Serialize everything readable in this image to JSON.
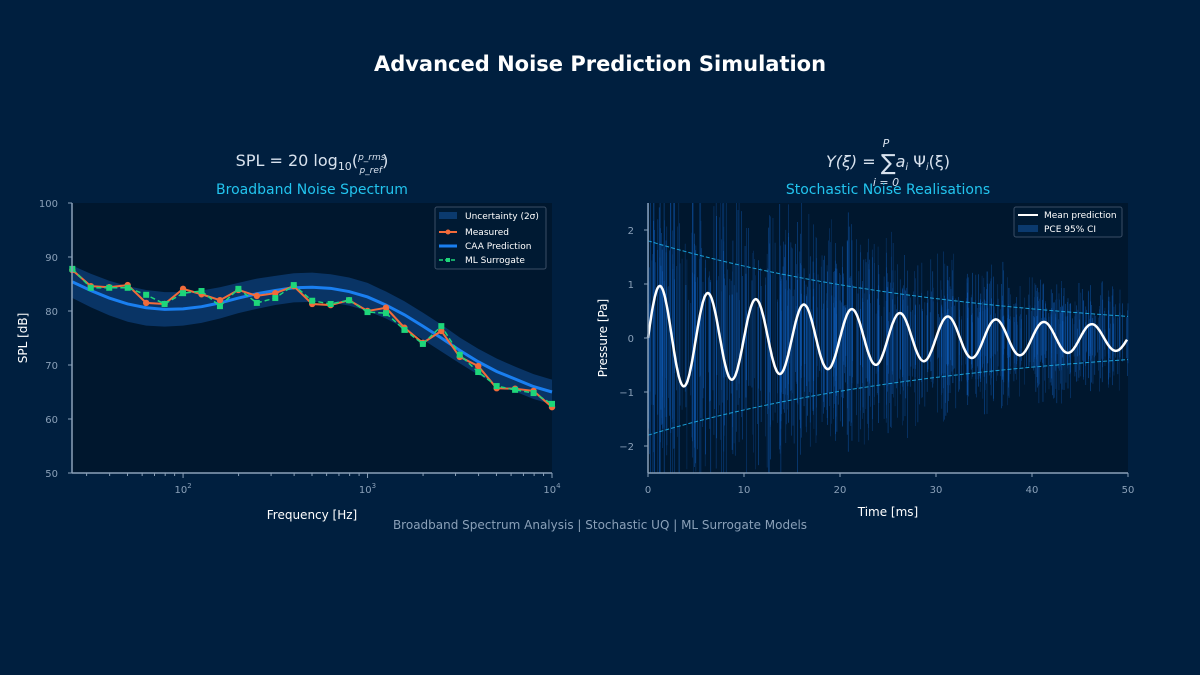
{
  "page": {
    "title": "Advanced Noise Prediction Simulation",
    "footer": "Broadband Spectrum Analysis  |  Stochastic UQ  |  ML Surrogate Models"
  },
  "colors": {
    "background": "#001f3f",
    "plot_bg": "#00172e",
    "measured": "#f26b3a",
    "caa": "#1a7ff0",
    "ml": "#1ed67a",
    "band": "#0b3a6e",
    "subtitle": "#22c4ee",
    "mean": "#ffffff",
    "ci": "#1aa0d8",
    "noise": "#1060c0"
  },
  "chart_data": [
    {
      "type": "line",
      "formula": "SPL = 20 log10(p_rms / p_ref)",
      "formula_parts": {
        "lhs": "SPL = 20 log",
        "sub": "10",
        "num": "p_rms",
        "den": "p_ref"
      },
      "title": "Broadband Noise Spectrum",
      "xlabel": "Frequency [Hz]",
      "ylabel": "SPL [dB]",
      "xscale": "log",
      "xlim": [
        25,
        10000
      ],
      "ylim": [
        50,
        100
      ],
      "xticks": [
        {
          "value": 100,
          "base": "10",
          "exp": "2"
        },
        {
          "value": 1000,
          "base": "10",
          "exp": "3"
        },
        {
          "value": 10000,
          "base": "10",
          "exp": "4"
        }
      ],
      "yticks": [
        "50",
        "60",
        "70",
        "80",
        "90",
        "100"
      ],
      "legend_position": "top-right",
      "legend": [
        "Uncertainty (2σ)",
        "Measured",
        "CAA Prediction",
        "ML Surrogate"
      ],
      "x": [
        25.1,
        31.6,
        39.8,
        50.1,
        63.1,
        79.4,
        100,
        125.9,
        158.5,
        199.5,
        251.2,
        316.2,
        398.1,
        501.2,
        631,
        794.3,
        1000,
        1258.9,
        1584.9,
        1995.3,
        2511.9,
        3162.3,
        3981.1,
        5011.9,
        6309.6,
        7943.3,
        10000
      ],
      "series": [
        {
          "name": "Measured",
          "values": [
            87.6,
            84.6,
            84.4,
            84.8,
            81.5,
            81.3,
            84.1,
            83.1,
            82.0,
            83.9,
            82.8,
            83.3,
            84.6,
            81.3,
            81.1,
            82.0,
            80.0,
            80.6,
            76.9,
            74.1,
            76.3,
            71.5,
            69.8,
            65.7,
            65.6,
            65.2,
            62.2
          ]
        },
        {
          "name": "ML Surrogate",
          "values": [
            87.8,
            84.3,
            84.3,
            84.3,
            83.0,
            81.3,
            83.3,
            83.7,
            80.9,
            84.1,
            81.5,
            82.4,
            84.8,
            81.9,
            81.3,
            82.0,
            79.8,
            79.6,
            76.5,
            73.9,
            77.2,
            71.9,
            68.7,
            66.1,
            65.4,
            64.8,
            62.8
          ]
        },
        {
          "name": "CAA Prediction",
          "values": [
            85.4,
            83.8,
            82.4,
            81.3,
            80.6,
            80.3,
            80.4,
            80.8,
            81.5,
            82.4,
            83.2,
            83.8,
            84.3,
            84.4,
            84.2,
            83.6,
            82.6,
            81.1,
            79.3,
            77.2,
            75.0,
            72.7,
            70.6,
            68.8,
            67.4,
            66.0,
            65.0
          ]
        }
      ],
      "uncertainty_2sigma_db": [
        3.0,
        3.1,
        3.2,
        3.3,
        3.3,
        3.2,
        3.1,
        3.0,
        2.9,
        2.8,
        2.8,
        2.7,
        2.7,
        2.7,
        2.6,
        2.6,
        2.6,
        2.5,
        2.5,
        2.5,
        2.5,
        2.4,
        2.4,
        2.4,
        2.3,
        2.3,
        2.3
      ]
    },
    {
      "type": "line",
      "formula": "Y(ξ) = Σ_{i=0}^{P} a_i Ψ_i(ξ)",
      "formula_parts": {
        "lhs": "Y(ξ) = ",
        "sum": "∑",
        "upper": "P",
        "lower": "i = 0",
        "rhs": "a",
        "rhs_sub": "i",
        "rhs2": " Ψ",
        "rhs2_sub": "i",
        "rhs3": "(ξ)"
      },
      "title": "Stochastic Noise Realisations",
      "xlabel": "Time [ms]",
      "ylabel": "Pressure [Pa]",
      "xlim": [
        0,
        50
      ],
      "ylim": [
        -2.5,
        2.5
      ],
      "xticks": [
        "0",
        "10",
        "20",
        "30",
        "40",
        "50"
      ],
      "yticks": [
        "−2",
        "−1",
        "0",
        "1",
        "2"
      ],
      "legend_position": "top-right",
      "legend": [
        "Mean prediction",
        "PCE 95% CI"
      ],
      "mean_prediction": {
        "amplitude": 1.0,
        "frequency_hz": 200,
        "decay_ms": 34
      },
      "ci_95": {
        "half_width_at_0": 1.8,
        "half_width_at_50": 0.4
      }
    }
  ]
}
